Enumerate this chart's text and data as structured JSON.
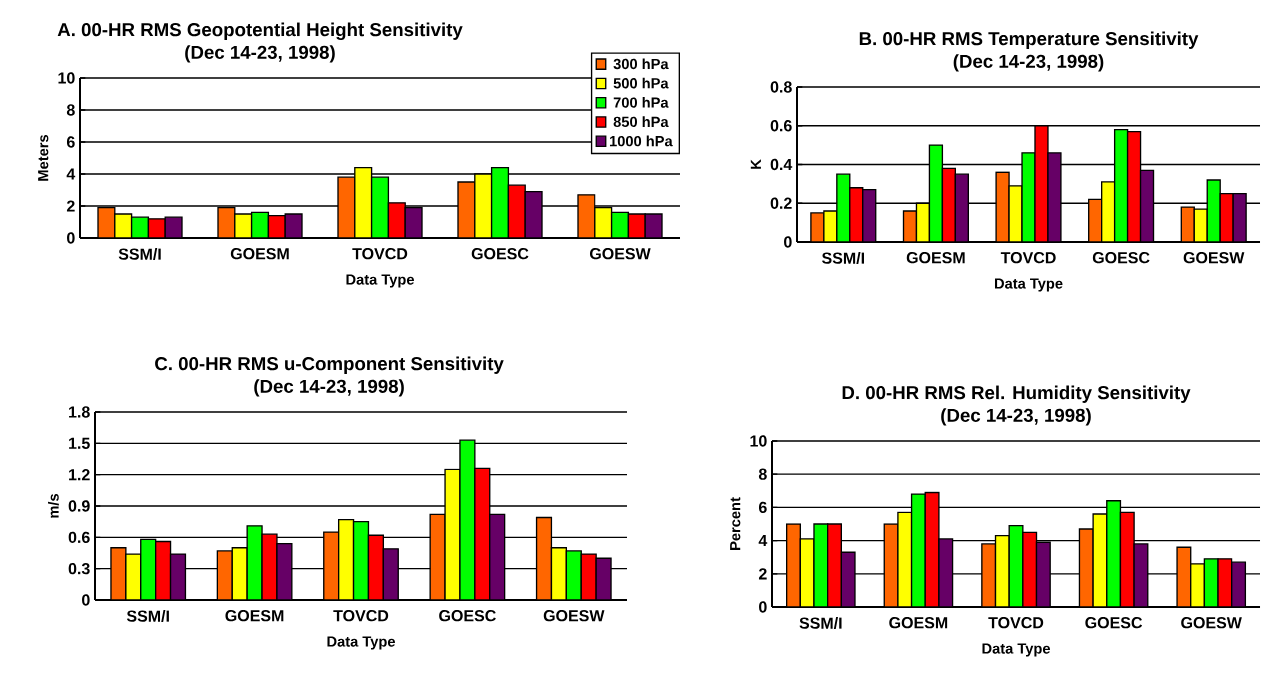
{
  "chart_data": [
    {
      "type": "bar",
      "title": "A.  00-HR RMS Geopotential Height Sensitivity",
      "subtitle": "(Dec 14-23, 1998)",
      "xlabel": "Data Type",
      "ylabel": "Meters",
      "categories": [
        "SSM/I",
        "GOESM",
        "TOVCD",
        "GOESC",
        "GOESW"
      ],
      "series": [
        {
          "name": "300 hPa",
          "color": "#ff6600",
          "values": [
            1.9,
            1.9,
            3.8,
            3.5,
            2.7
          ]
        },
        {
          "name": "500 hPa",
          "color": "#ffff00",
          "values": [
            1.5,
            1.5,
            4.4,
            4.0,
            1.9
          ]
        },
        {
          "name": "700 hPa",
          "color": "#00ff00",
          "values": [
            1.3,
            1.6,
            3.8,
            4.4,
            1.6
          ]
        },
        {
          "name": "850 hPa",
          "color": "#ff0000",
          "values": [
            1.2,
            1.4,
            2.2,
            3.3,
            1.5
          ]
        },
        {
          "name": "1000 hPa",
          "color": "#660066",
          "values": [
            1.3,
            1.5,
            1.9,
            2.9,
            1.5
          ]
        }
      ],
      "ylim": [
        0,
        10
      ],
      "yticks": [
        0,
        2,
        4,
        6,
        8,
        10
      ],
      "grid": "y",
      "legend": "top right"
    },
    {
      "type": "bar",
      "title": "B.  00-HR RMS Temperature Sensitivity",
      "subtitle": "(Dec 14-23, 1998)",
      "xlabel": "Data Type",
      "ylabel": "K",
      "categories": [
        "SSM/I",
        "GOESM",
        "TOVCD",
        "GOESC",
        "GOESW"
      ],
      "series": [
        {
          "color": "#ff6600",
          "values": [
            0.15,
            0.16,
            0.36,
            0.22,
            0.18
          ]
        },
        {
          "color": "#ffff00",
          "values": [
            0.16,
            0.2,
            0.29,
            0.31,
            0.17
          ]
        },
        {
          "color": "#00ff00",
          "values": [
            0.35,
            0.5,
            0.46,
            0.58,
            0.32
          ]
        },
        {
          "color": "#ff0000",
          "values": [
            0.28,
            0.38,
            0.6,
            0.57,
            0.25
          ]
        },
        {
          "color": "#660066",
          "values": [
            0.27,
            0.35,
            0.46,
            0.37,
            0.25
          ]
        }
      ],
      "ylim": [
        0,
        0.8
      ],
      "yticks": [
        0,
        0.2,
        0.4,
        0.6,
        0.8
      ],
      "grid": "y"
    },
    {
      "type": "bar",
      "title": "C.  00-HR RMS u-Component Sensitivity",
      "subtitle": "(Dec 14-23, 1998)",
      "xlabel": "Data Type",
      "ylabel": "m/s",
      "categories": [
        "SSM/I",
        "GOESM",
        "TOVCD",
        "GOESC",
        "GOESW"
      ],
      "series": [
        {
          "color": "#ff6600",
          "values": [
            0.5,
            0.47,
            0.65,
            0.82,
            0.79
          ]
        },
        {
          "color": "#ffff00",
          "values": [
            0.44,
            0.5,
            0.77,
            1.25,
            0.5
          ]
        },
        {
          "color": "#00ff00",
          "values": [
            0.58,
            0.71,
            0.75,
            1.53,
            0.47
          ]
        },
        {
          "color": "#ff0000",
          "values": [
            0.56,
            0.63,
            0.62,
            1.26,
            0.44
          ]
        },
        {
          "color": "#660066",
          "values": [
            0.44,
            0.54,
            0.49,
            0.82,
            0.4
          ]
        }
      ],
      "ylim": [
        0,
        1.8
      ],
      "yticks": [
        0,
        0.3,
        0.6,
        0.9,
        1.2,
        1.5,
        1.8
      ],
      "grid": "y"
    },
    {
      "type": "bar",
      "title": "D.  00-HR RMS Rel. Humidity Sensitivity",
      "subtitle": "(Dec 14-23, 1998)",
      "xlabel": "Data Type",
      "ylabel": "Percent",
      "categories": [
        "SSM/I",
        "GOESM",
        "TOVCD",
        "GOESC",
        "GOESW"
      ],
      "series": [
        {
          "color": "#ff6600",
          "values": [
            5.0,
            5.0,
            3.8,
            4.7,
            3.6
          ]
        },
        {
          "color": "#ffff00",
          "values": [
            4.1,
            5.7,
            4.3,
            5.6,
            2.6
          ]
        },
        {
          "color": "#00ff00",
          "values": [
            5.0,
            6.8,
            4.9,
            6.4,
            2.9
          ]
        },
        {
          "color": "#ff0000",
          "values": [
            5.0,
            6.9,
            4.5,
            5.7,
            2.9
          ]
        },
        {
          "color": "#660066",
          "values": [
            3.3,
            4.1,
            3.9,
            3.8,
            2.7
          ]
        }
      ],
      "ylim": [
        0,
        10
      ],
      "yticks": [
        0,
        2,
        4,
        6,
        8,
        10
      ],
      "grid": "y"
    }
  ]
}
